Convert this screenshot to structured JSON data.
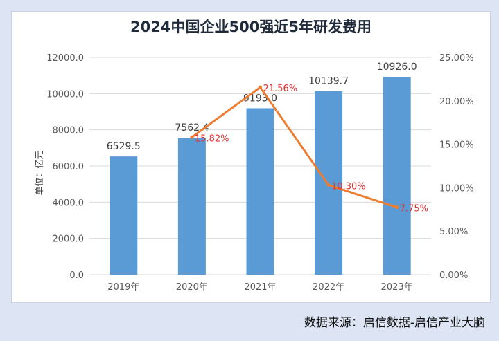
{
  "source_text": "数据来源：启信数据-启信产业大脑",
  "chart_data": {
    "type": "bar+line",
    "title": "2024中国企业500强近5年研发费用",
    "ylabel": "单位：亿元",
    "categories": [
      "2019年",
      "2020年",
      "2021年",
      "2022年",
      "2023年"
    ],
    "series": [
      {
        "type": "bar",
        "values": [
          6529.5,
          7562.4,
          9193.0,
          10139.7,
          10926.0
        ],
        "labels": [
          "6529.5",
          "7562.4",
          "9193.0",
          "10139.7",
          "10926.0"
        ],
        "color": "#5b9bd5",
        "axis": "left"
      },
      {
        "type": "line",
        "values": [
          null,
          15.82,
          21.56,
          10.3,
          7.75
        ],
        "labels": [
          null,
          "15.82%",
          "21.56%",
          "10.30%",
          "7.75%"
        ],
        "color": "#ed7d31",
        "label_color": "#e03030",
        "axis": "right"
      }
    ],
    "y_left": {
      "ylim": [
        0,
        12000
      ],
      "ticks": [
        "0.0",
        "2000.0",
        "4000.0",
        "6000.0",
        "8000.0",
        "10000.0",
        "12000.0"
      ]
    },
    "y_right": {
      "ylim": [
        0,
        25
      ],
      "ticks": [
        "0.00%",
        "5.00%",
        "10.00%",
        "15.00%",
        "20.00%",
        "25.00%"
      ]
    },
    "grid": true
  }
}
